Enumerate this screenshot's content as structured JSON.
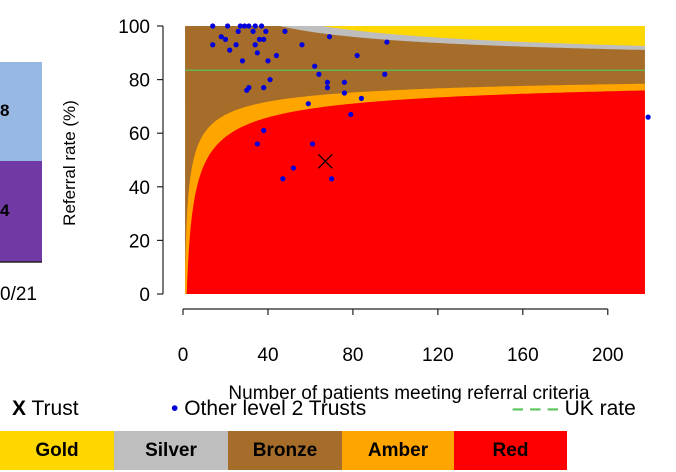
{
  "left_panel": {
    "top_value": "8",
    "bottom_value": "4",
    "date_label": "0/21",
    "colors": {
      "top": "#97b8e2",
      "bottom": "#7039a3"
    }
  },
  "chart_data": {
    "type": "scatter",
    "title": "",
    "xlabel": "Number of patients meeting referral criteria",
    "ylabel": "Referral rate (%)",
    "xlim": [
      -5,
      220
    ],
    "ylim": [
      -3,
      105
    ],
    "xticks": [
      0,
      40,
      80,
      120,
      160,
      200
    ],
    "yticks": [
      0,
      20,
      40,
      60,
      80,
      100
    ],
    "uk_rate": 83.5,
    "trust": {
      "label": "Trust",
      "marker": "X",
      "x": 67,
      "y": 49.5
    },
    "series": [
      {
        "name": "Other level 2 Trusts",
        "color": "#0000dd",
        "points": [
          [
            14,
            100
          ],
          [
            21,
            100
          ],
          [
            27,
            100
          ],
          [
            29,
            100
          ],
          [
            31,
            100
          ],
          [
            34,
            100
          ],
          [
            37,
            100
          ],
          [
            18,
            96
          ],
          [
            26,
            98
          ],
          [
            33,
            98
          ],
          [
            39,
            98
          ],
          [
            48,
            98
          ],
          [
            20,
            95
          ],
          [
            36,
            95
          ],
          [
            38,
            95
          ],
          [
            69,
            96
          ],
          [
            14,
            93
          ],
          [
            25,
            93
          ],
          [
            34,
            93
          ],
          [
            56,
            93
          ],
          [
            96,
            94
          ],
          [
            22,
            91
          ],
          [
            35,
            90
          ],
          [
            44,
            89
          ],
          [
            82,
            89
          ],
          [
            28,
            87
          ],
          [
            40,
            87
          ],
          [
            62,
            85
          ],
          [
            64,
            82
          ],
          [
            95,
            82
          ],
          [
            41,
            80
          ],
          [
            68,
            79
          ],
          [
            76,
            79
          ],
          [
            31,
            77
          ],
          [
            30,
            76
          ],
          [
            38,
            77
          ],
          [
            76,
            75
          ],
          [
            68,
            77
          ],
          [
            84,
            73
          ],
          [
            59,
            71
          ],
          [
            79,
            67
          ],
          [
            38,
            61
          ],
          [
            35,
            56
          ],
          [
            61,
            56
          ],
          [
            52,
            47
          ],
          [
            70,
            43
          ],
          [
            47,
            43
          ],
          [
            219,
            66
          ]
        ]
      }
    ],
    "regions": [
      {
        "name": "Gold",
        "color": "#ffd700"
      },
      {
        "name": "Silver",
        "color": "#bebebe"
      },
      {
        "name": "Bronze",
        "color": "#a56c2a"
      },
      {
        "name": "Amber",
        "color": "#ffa500"
      },
      {
        "name": "Red",
        "color": "#ff0000"
      }
    ],
    "uk_line_color": "#5ac45a",
    "legend": {
      "trust_marker": "X",
      "trust_label": "Trust",
      "other_marker": "•",
      "other_label": "Other level 2 Trusts",
      "uk_marker": "– – –",
      "uk_label": "UK rate"
    }
  }
}
